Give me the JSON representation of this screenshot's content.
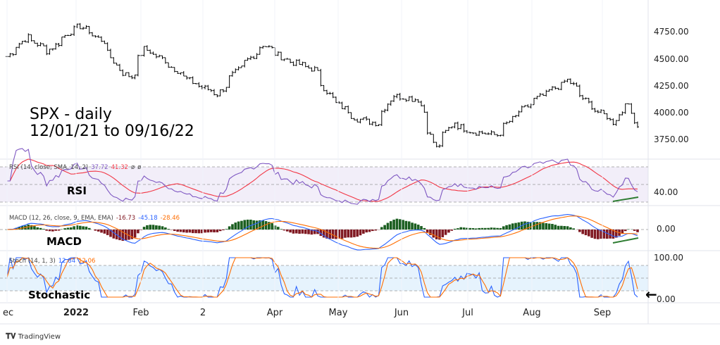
{
  "annotations": {
    "title": "SPX - daily",
    "range": "12/01/21 to 09/16/22",
    "rsi": "RSI",
    "macd": "MACD",
    "stoch": "Stochastic",
    "arrow": "←"
  },
  "legends": {
    "rsi": {
      "label": "RSI (14, close, SMA, 14, 2)",
      "v1": "37.72",
      "v2": "41.32",
      "v3": "ø",
      "v4": "ø"
    },
    "macd": {
      "label": "MACD (12, 26, close, 9, EMA, EMA)",
      "v1": "-16.73",
      "v2": "-45.18",
      "v3": "-28.46"
    },
    "stoch": {
      "label": "Stoch (14, 1, 3)",
      "v1": "12.84",
      "v2": "12.06"
    }
  },
  "axis_labels": {
    "p4750": "4750.00",
    "p4500": "4500.00",
    "p4250": "4250.00",
    "p4000": "4000.00",
    "p3750": "3750.00",
    "rsi40": "40.00",
    "macd0": "0.00",
    "st100": "100.00",
    "st0": "0.00"
  },
  "branding": "TradingView",
  "colors": {
    "rsi": "#7e57c2",
    "rsi_ma": "#f23645",
    "macd": "#2962ff",
    "signal": "#ff6d00",
    "hist_pos": "#1b5e20",
    "hist_neg": "#801922",
    "trend": "#2e7d32"
  },
  "chart_data": {
    "type": "ohlc",
    "title": "SPX - daily",
    "ylim": [
      3600,
      4850
    ],
    "x_ticks": [
      "ec",
      "2022",
      "Feb",
      "2",
      "Apr",
      "May",
      "Jun",
      "Jul",
      "Aug",
      "Sep"
    ],
    "y_ticks": [
      3750,
      4000,
      4250,
      4500,
      4750
    ],
    "closes_keypoints": [
      [
        "2021-12-01",
        4520
      ],
      [
        "2021-12-10",
        4700
      ],
      [
        "2021-12-20",
        4570
      ],
      [
        "2021-12-31",
        4770
      ],
      [
        "2022-01-04",
        4800
      ],
      [
        "2022-01-14",
        4660
      ],
      [
        "2022-01-21",
        4400
      ],
      [
        "2022-01-27",
        4330
      ],
      [
        "2022-02-02",
        4590
      ],
      [
        "2022-02-10",
        4500
      ],
      [
        "2022-02-24",
        4280
      ],
      [
        "2022-03-08",
        4170
      ],
      [
        "2022-03-15",
        4350
      ],
      [
        "2022-03-29",
        4630
      ],
      [
        "2022-04-08",
        4490
      ],
      [
        "2022-04-21",
        4400
      ],
      [
        "2022-04-29",
        4130
      ],
      [
        "2022-05-11",
        3940
      ],
      [
        "2022-05-20",
        3900
      ],
      [
        "2022-05-27",
        4160
      ],
      [
        "2022-06-08",
        4120
      ],
      [
        "2022-06-16",
        3670
      ],
      [
        "2022-06-24",
        3910
      ],
      [
        "2022-07-01",
        3830
      ],
      [
        "2022-07-14",
        3790
      ],
      [
        "2022-07-22",
        3960
      ],
      [
        "2022-08-01",
        4120
      ],
      [
        "2022-08-16",
        4300
      ],
      [
        "2022-08-26",
        4060
      ],
      [
        "2022-09-06",
        3910
      ],
      [
        "2022-09-12",
        4110
      ],
      [
        "2022-09-16",
        3873
      ]
    ]
  }
}
